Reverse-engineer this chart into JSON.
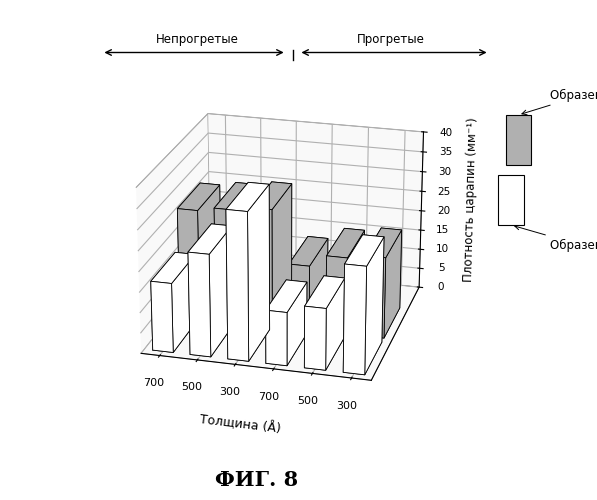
{
  "title": "ФИГ. 8",
  "ylabel": "Плотность царапин (мм⁻¹)",
  "xlabel": "Толщина (Å)",
  "group1_label": "Непрогретые",
  "group2_label": "Прогретые",
  "thicknesses": [
    "700",
    "500",
    "300",
    "700",
    "500",
    "300"
  ],
  "series_H_values": [
    27,
    28,
    29,
    16,
    19,
    20
  ],
  "series_I_values": [
    17,
    25,
    36,
    13,
    15,
    26
  ],
  "color_H": "#b0b0b0",
  "color_I": "#ffffff",
  "hatch_H": "..",
  "ylim": [
    0,
    40
  ],
  "yticks": [
    0,
    5,
    10,
    15,
    20,
    25,
    30,
    35,
    40
  ],
  "legend_H": "Образец H",
  "legend_I": "Образец I",
  "background_color": "#ffffff",
  "elev": 22,
  "azim": -75
}
